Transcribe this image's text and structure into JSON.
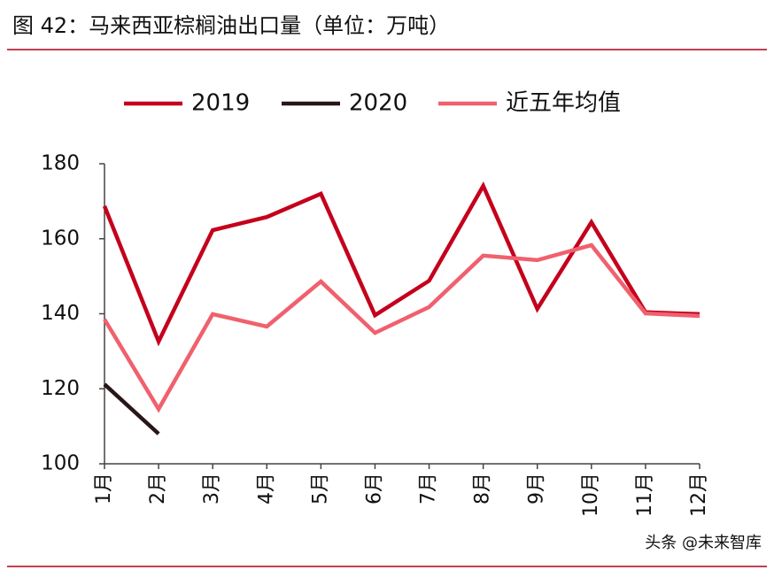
{
  "chart_data": {
    "type": "line",
    "title": "图 42：马来西亚棕榈油出口量（单位：万吨）",
    "categories": [
      "1月",
      "2月",
      "3月",
      "4月",
      "5月",
      "6月",
      "7月",
      "8月",
      "9月",
      "10月",
      "11月",
      "12月"
    ],
    "series": [
      {
        "name": "2019",
        "color": "#c4001c",
        "values": [
          168.7,
          132.6,
          162.3,
          165.8,
          172,
          139.6,
          148.8,
          174.1,
          141.3,
          164.4,
          140.4,
          139.9
        ]
      },
      {
        "name": "2020",
        "color": "#2a1616",
        "values": [
          121.2,
          108,
          null,
          null,
          null,
          null,
          null,
          null,
          null,
          null,
          null,
          null
        ]
      },
      {
        "name": "近五年均值",
        "color": "#f0606e",
        "values": [
          138.5,
          114.6,
          139.9,
          136.6,
          148.6,
          134.9,
          141.8,
          155.5,
          154.3,
          158.3,
          140.1,
          139.4
        ]
      }
    ],
    "ylim": [
      100,
      180
    ],
    "yticks": [
      100,
      120,
      140,
      160,
      180
    ],
    "grid": false,
    "legend": "top"
  },
  "watermark": "头条 @未来智库"
}
